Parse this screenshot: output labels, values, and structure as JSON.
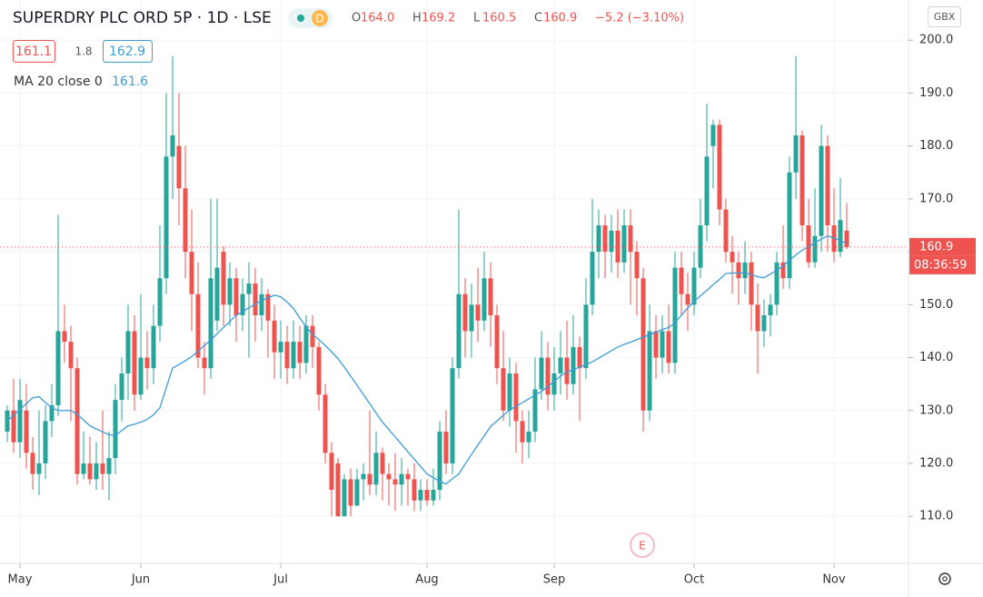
{
  "chart_data": {
    "type": "candlestick",
    "title": "SUPERDRY PLC ORD 5P · 1D · LSE",
    "interval_badge": "D",
    "ohlc": [
      {
        "label": "O",
        "value": "164.0"
      },
      {
        "label": "H",
        "value": "169.2"
      },
      {
        "label": "L",
        "value": "160.5"
      },
      {
        "label": "C",
        "value": "160.9"
      }
    ],
    "change": "−5.2 (−3.10%)",
    "bid": 161.1,
    "spread": 1.8,
    "ask": 162.9,
    "currency": "GBX",
    "countdown": "08:36:59",
    "event_marker": "E",
    "up_color": "#26a69a",
    "down_color": "#ef5350",
    "categories": [
      null,
      null,
      "May",
      null,
      null,
      null,
      null,
      null,
      null,
      null,
      null,
      null,
      null,
      null,
      null,
      null,
      null,
      null,
      null,
      null,
      null,
      "Jun",
      null,
      null,
      null,
      null,
      null,
      null,
      null,
      null,
      null,
      null,
      null,
      null,
      null,
      null,
      null,
      null,
      null,
      null,
      null,
      null,
      null,
      "Jul",
      null,
      null,
      null,
      null,
      null,
      null,
      null,
      null,
      null,
      null,
      null,
      null,
      null,
      null,
      null,
      null,
      null,
      null,
      null,
      null,
      null,
      null,
      "Aug",
      null,
      null,
      null,
      null,
      null,
      null,
      null,
      null,
      null,
      null,
      null,
      null,
      null,
      null,
      null,
      null,
      null,
      null,
      null,
      "Sep",
      null,
      null,
      null,
      null,
      null,
      null,
      null,
      null,
      null,
      null,
      null,
      null,
      null,
      null,
      null,
      null,
      null,
      null,
      null,
      null,
      null,
      "Oct",
      null,
      null,
      null,
      null,
      null,
      null,
      null,
      null,
      null,
      null,
      null,
      null,
      null,
      null,
      null,
      null,
      null,
      null,
      null,
      null,
      null,
      "Nov",
      null,
      null
    ],
    "open": [
      126,
      130,
      124,
      130,
      122,
      118,
      120,
      128,
      131,
      145,
      143,
      138,
      118,
      120,
      117,
      120,
      118,
      121,
      132,
      137,
      145,
      133,
      140,
      138,
      146,
      155,
      178,
      180,
      172,
      160,
      152,
      140,
      138,
      147,
      160,
      150,
      155,
      148,
      152,
      154,
      148,
      152,
      147,
      141,
      143,
      138,
      143,
      139,
      146,
      142,
      133,
      122,
      120,
      110,
      117,
      112,
      117,
      118,
      116,
      122,
      118,
      117,
      116,
      118,
      117,
      113,
      115,
      113,
      115,
      126,
      120,
      138,
      152,
      145,
      150,
      147,
      155,
      148,
      138,
      130,
      137,
      128,
      124,
      126,
      134,
      140,
      133,
      137,
      140,
      135,
      142,
      138,
      150,
      160,
      165,
      160,
      164,
      158,
      165,
      160,
      155,
      130,
      145,
      140,
      145,
      139,
      157,
      152,
      150,
      157,
      165,
      180,
      184,
      168,
      160,
      158,
      155,
      158,
      150,
      145,
      148,
      150,
      158,
      155,
      175,
      182,
      165,
      158,
      163,
      180,
      165,
      160,
      164
    ],
    "high": [
      131,
      136,
      136,
      135,
      125,
      130,
      131,
      135,
      167,
      150,
      146,
      140,
      126,
      125,
      124,
      130,
      126,
      135,
      140,
      150,
      148,
      152,
      145,
      150,
      165,
      190,
      197,
      190,
      180,
      168,
      158,
      143,
      170,
      170,
      161,
      158,
      157,
      155,
      158,
      157,
      155,
      153,
      150,
      147,
      146,
      147,
      146,
      148,
      148,
      143,
      135,
      124,
      121,
      118,
      119,
      119,
      120,
      130,
      126,
      123,
      120,
      122,
      121,
      119,
      120,
      117,
      117,
      119,
      128,
      130,
      140,
      168,
      155,
      154,
      157,
      160,
      158,
      150,
      145,
      140,
      139,
      130,
      130,
      140,
      145,
      143,
      142,
      145,
      147,
      148,
      144,
      155,
      170,
      168,
      167,
      167,
      168,
      168,
      168,
      162,
      157,
      150,
      148,
      148,
      150,
      160,
      160,
      156,
      160,
      170,
      188,
      185,
      185,
      170,
      163,
      160,
      162,
      160,
      154,
      151,
      152,
      160,
      165,
      178,
      197,
      183,
      170,
      172,
      184,
      182,
      172,
      174,
      169.2
    ],
    "low": [
      124,
      122,
      121,
      119,
      115,
      114,
      117,
      125,
      129,
      139,
      128,
      116,
      117,
      116,
      115,
      115,
      113,
      118,
      128,
      132,
      130,
      132,
      134,
      135,
      143,
      152,
      170,
      165,
      155,
      145,
      138,
      133,
      136,
      145,
      146,
      146,
      143,
      145,
      140,
      143,
      145,
      140,
      136,
      136,
      135,
      136,
      136,
      137,
      138,
      130,
      120,
      110,
      110,
      110,
      110,
      112,
      113,
      114,
      114,
      113,
      112,
      111,
      112,
      112,
      111,
      111,
      112,
      112,
      113,
      118,
      118,
      136,
      140,
      140,
      143,
      145,
      142,
      135,
      128,
      127,
      122,
      120,
      121,
      124,
      132,
      130,
      130,
      133,
      132,
      133,
      128,
      136,
      148,
      155,
      155,
      156,
      155,
      156,
      150,
      148,
      126,
      128,
      136,
      137,
      137,
      137,
      148,
      145,
      148,
      155,
      162,
      172,
      165,
      158,
      152,
      150,
      152,
      145,
      137,
      142,
      144,
      148,
      153,
      153,
      170,
      162,
      157,
      157,
      160,
      160,
      158,
      159,
      160.5
    ],
    "close": [
      130,
      124,
      132,
      122,
      118,
      120,
      128,
      131,
      145,
      143,
      138,
      118,
      120,
      117,
      120,
      118,
      121,
      132,
      137,
      145,
      133,
      140,
      138,
      146,
      155,
      178,
      182,
      172,
      160,
      152,
      140,
      138,
      155,
      157,
      150,
      155,
      148,
      152,
      154,
      148,
      152,
      147,
      141,
      143,
      138,
      143,
      139,
      146,
      142,
      133,
      122,
      115,
      110,
      117,
      112,
      117,
      118,
      116,
      122,
      118,
      117,
      116,
      118,
      117,
      113,
      115,
      113,
      115,
      126,
      120,
      138,
      152,
      145,
      150,
      147,
      155,
      148,
      138,
      130,
      137,
      128,
      124,
      126,
      134,
      140,
      133,
      137,
      140,
      135,
      142,
      138,
      150,
      160,
      165,
      160,
      164,
      158,
      165,
      160,
      155,
      130,
      145,
      140,
      145,
      139,
      157,
      152,
      150,
      157,
      165,
      178,
      184,
      168,
      160,
      158,
      155,
      158,
      150,
      145,
      148,
      150,
      158,
      155,
      175,
      182,
      165,
      158,
      163,
      180,
      165,
      160,
      166,
      160.9
    ],
    "series": [
      {
        "name": "MA 20 close 0",
        "color": "#3d9bd8",
        "last": 161.6,
        "values": [
          128,
          129.1,
          130.2,
          131.3,
          132.4,
          132.6,
          131.5,
          130.5,
          130,
          130,
          130,
          129.3,
          128.2,
          127.1,
          126.5,
          126,
          125.4,
          125.3,
          126.2,
          127.1,
          127.4,
          127.8,
          128.3,
          129.2,
          130.5,
          134.3,
          138,
          138.7,
          139.4,
          140.2,
          141.2,
          142.3,
          143.3,
          144.5,
          145.7,
          146.8,
          148,
          148.7,
          149.4,
          150.1,
          150.8,
          151.3,
          151.8,
          151.5,
          150.5,
          149.3,
          147.5,
          145.8,
          144.4,
          143.4,
          142.3,
          141.1,
          139.8,
          138.2,
          136.5,
          134.8,
          133,
          131.3,
          129.5,
          127.8,
          126.4,
          125,
          123.6,
          122.2,
          120.8,
          119.4,
          118,
          117.3,
          116.6,
          116.1,
          117.1,
          118,
          119.9,
          121.7,
          123.5,
          125.2,
          127,
          128,
          129.1,
          130.1,
          130.8,
          131.5,
          132.2,
          132.9,
          133.6,
          134.5,
          135.5,
          136.5,
          137.3,
          137.7,
          138.2,
          138.7,
          139.2,
          139.9,
          140.6,
          141.3,
          142,
          142.5,
          142.9,
          143.4,
          143.9,
          144.3,
          144.8,
          145.3,
          145.7,
          146.6,
          148,
          149.4,
          150.6,
          151.7,
          152.7,
          153.8,
          154.8,
          155.9,
          156,
          156,
          156,
          155.7,
          155.3,
          155.1,
          155.8,
          156.5,
          157.3,
          158.4,
          159.4,
          160.3,
          161,
          161.7,
          162.4,
          163,
          162.6,
          162.1,
          161.6
        ]
      }
    ],
    "ylim": [
      101.1,
      207.6
    ],
    "yticks": [
      {
        "value": 110,
        "label": "110.0"
      },
      {
        "value": 120,
        "label": "120.0"
      },
      {
        "value": 130,
        "label": "130.0"
      },
      {
        "value": 140,
        "label": "140.0"
      },
      {
        "value": 150,
        "label": "150.0"
      },
      {
        "value": 160,
        "label": "160.0"
      },
      {
        "value": 170,
        "label": "170.0"
      },
      {
        "value": 180,
        "label": "180.0"
      },
      {
        "value": 190,
        "label": "190.0"
      },
      {
        "value": 200,
        "label": "200.0"
      }
    ],
    "grid": true
  }
}
